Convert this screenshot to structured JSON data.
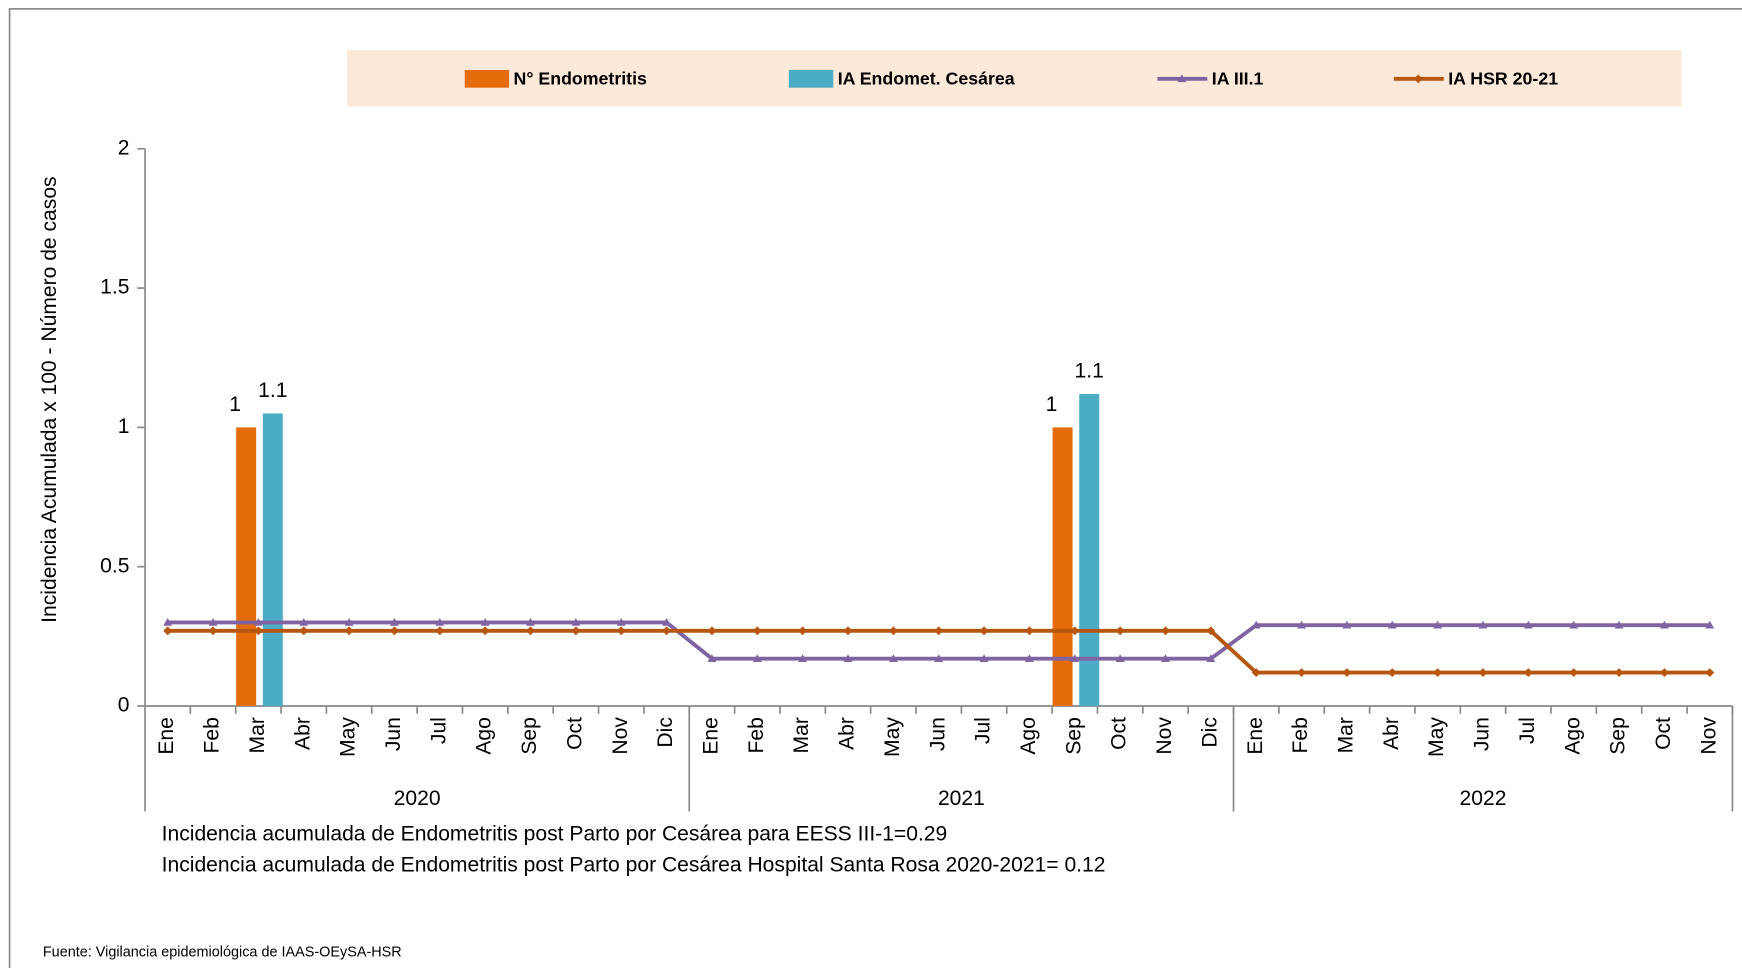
{
  "chart_data": {
    "type": "bar_line",
    "y_axis_label": "Incidencia Acumulada x 100 - Número de casos",
    "groups": [
      {
        "label": "2020",
        "categories": [
          "Ene",
          "Feb",
          "Mar",
          "Abr",
          "May",
          "Jun",
          "Jul",
          "Ago",
          "Sep",
          "Oct",
          "Nov",
          "Dic"
        ]
      },
      {
        "label": "2021",
        "categories": [
          "Ene",
          "Feb",
          "Mar",
          "Abr",
          "May",
          "Jun",
          "Jul",
          "Ago",
          "Sep",
          "Oct",
          "Nov",
          "Dic"
        ]
      },
      {
        "label": "2022",
        "categories": [
          "Ene",
          "Feb",
          "Mar",
          "Abr",
          "May",
          "Jun",
          "Jul",
          "Ago",
          "Sep",
          "Oct",
          "Nov"
        ]
      }
    ],
    "ylim": [
      0,
      2
    ],
    "yticks": [
      0,
      0.5,
      1,
      1.5,
      2
    ],
    "series": [
      {
        "name": "N° Endometritis",
        "type": "bar",
        "color": "#e46c0a",
        "values": [
          null,
          null,
          1,
          null,
          null,
          null,
          null,
          null,
          null,
          null,
          null,
          null,
          null,
          null,
          null,
          null,
          null,
          null,
          null,
          null,
          1,
          null,
          null,
          null,
          null,
          null,
          null,
          null,
          null,
          null,
          null,
          null,
          null,
          null,
          null
        ]
      },
      {
        "name": "IA Endomet. Cesárea",
        "type": "bar",
        "color": "#4bacc6",
        "values": [
          null,
          null,
          1.05,
          null,
          null,
          null,
          null,
          null,
          null,
          null,
          null,
          null,
          null,
          null,
          null,
          null,
          null,
          null,
          null,
          null,
          1.12,
          null,
          null,
          null,
          null,
          null,
          null,
          null,
          null,
          null,
          null,
          null,
          null,
          null,
          null
        ],
        "value_labels": [
          null,
          null,
          "1.1",
          null,
          null,
          null,
          null,
          null,
          null,
          null,
          null,
          null,
          null,
          null,
          null,
          null,
          null,
          null,
          null,
          null,
          "1.1",
          null,
          null,
          null,
          null,
          null,
          null,
          null,
          null,
          null,
          null,
          null,
          null,
          null,
          null
        ]
      },
      {
        "name": "IA  III.1",
        "type": "line",
        "color": "#8064a2",
        "marker": "triangle",
        "values": [
          0.3,
          0.3,
          0.3,
          0.3,
          0.3,
          0.3,
          0.3,
          0.3,
          0.3,
          0.3,
          0.3,
          0.3,
          0.17,
          0.17,
          0.17,
          0.17,
          0.17,
          0.17,
          0.17,
          0.17,
          0.17,
          0.17,
          0.17,
          0.17,
          0.29,
          0.29,
          0.29,
          0.29,
          0.29,
          0.29,
          0.29,
          0.29,
          0.29,
          0.29,
          0.29
        ]
      },
      {
        "name": "IA HSR 20-21",
        "type": "line",
        "color": "#b7560f",
        "marker": "diamond",
        "values": [
          0.27,
          0.27,
          0.27,
          0.27,
          0.27,
          0.27,
          0.27,
          0.27,
          0.27,
          0.27,
          0.27,
          0.27,
          0.27,
          0.27,
          0.27,
          0.27,
          0.27,
          0.27,
          0.27,
          0.27,
          0.27,
          0.27,
          0.27,
          0.27,
          0.12,
          0.12,
          0.12,
          0.12,
          0.12,
          0.12,
          0.12,
          0.12,
          0.12,
          0.12,
          0.12
        ]
      }
    ],
    "notes": [
      "Incidencia acumulada de Endometritis post Parto por Cesárea para EESS III-1=0.29",
      "Incidencia acumulada de Endometritis post Parto por Cesárea Hospital Santa Rosa 2020-2021=  0.12"
    ],
    "source": "Fuente: Vigilancia epidemiológica de IAAS-OEySA-HSR"
  }
}
